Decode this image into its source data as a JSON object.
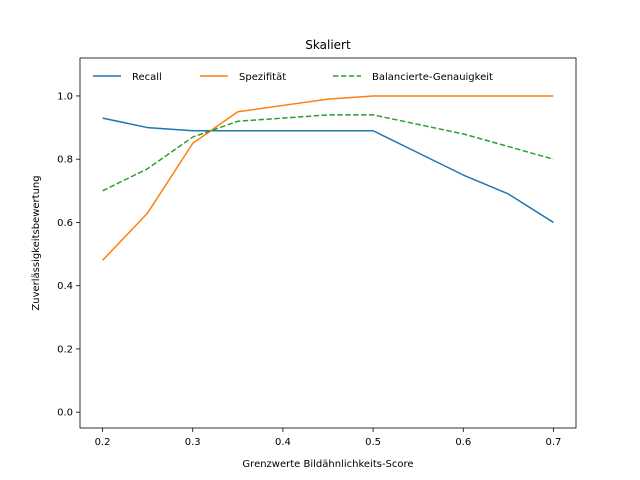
{
  "chart_data": {
    "type": "line",
    "title": "Skaliert",
    "xlabel": "Grenzwerte Bildähnlichkeits-Score",
    "ylabel": "Zuverlässigkeitsbewertung",
    "xlim": [
      0.175,
      0.725
    ],
    "ylim": [
      -0.05,
      1.12
    ],
    "xticks": [
      "0.2",
      "0.3",
      "0.4",
      "0.5",
      "0.6",
      "0.7"
    ],
    "yticks": [
      "0.0",
      "0.2",
      "0.4",
      "0.6",
      "0.8",
      "1.0"
    ],
    "x": [
      0.2,
      0.25,
      0.3,
      0.35,
      0.4,
      0.45,
      0.5,
      0.55,
      0.6,
      0.65,
      0.7
    ],
    "legend_position": "top",
    "grid": false,
    "series": [
      {
        "name": "Recall",
        "color": "#1f77b4",
        "dash": "solid",
        "values": [
          0.93,
          0.9,
          0.89,
          0.89,
          0.89,
          0.89,
          0.89,
          0.82,
          0.75,
          0.69,
          0.6
        ]
      },
      {
        "name": "Spezifität",
        "color": "#ff7f0e",
        "dash": "solid",
        "values": [
          0.48,
          0.63,
          0.85,
          0.95,
          0.97,
          0.99,
          1.0,
          1.0,
          1.0,
          1.0,
          1.0
        ]
      },
      {
        "name": "Balancierte-Genauigkeit",
        "color": "#2ca02c",
        "dash": "dashed",
        "values": [
          0.7,
          0.77,
          0.87,
          0.92,
          0.93,
          0.94,
          0.94,
          0.91,
          0.88,
          0.84,
          0.8
        ]
      }
    ]
  }
}
